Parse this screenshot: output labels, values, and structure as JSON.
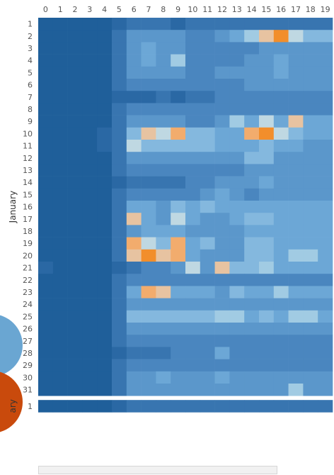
{
  "chart_data": {
    "type": "heatmap",
    "x": [
      0,
      1,
      2,
      3,
      4,
      5,
      6,
      7,
      8,
      9,
      10,
      11,
      12,
      13,
      14,
      15,
      16,
      17,
      18,
      19
    ],
    "row_panels": [
      {
        "label": "January",
        "days": [
          1,
          2,
          3,
          4,
          5,
          6,
          7,
          8,
          9,
          10,
          11,
          12,
          13,
          14,
          15,
          16,
          17,
          18,
          19,
          20,
          21,
          22,
          23,
          24,
          25,
          26,
          27,
          28,
          29,
          30,
          31
        ]
      },
      {
        "label": "ary",
        "days": [
          1
        ]
      }
    ],
    "palette": [
      "#1f5f9a",
      "#2a68a4",
      "#3875b0",
      "#4a86bf",
      "#5b97cb",
      "#6ca7d6",
      "#84b8de",
      "#a1cbe3",
      "#bfd8e2",
      "#e7c3a1",
      "#f2ac6d",
      "#f28e2b"
    ],
    "levels": [
      [
        0,
        0,
        0,
        0,
        0,
        1,
        2,
        2,
        2,
        1,
        2,
        2,
        2,
        2,
        2,
        2,
        2,
        2,
        2,
        2
      ],
      [
        0,
        0,
        0,
        0,
        0,
        2,
        4,
        4,
        4,
        4,
        3,
        3,
        4,
        5,
        7,
        9,
        11,
        8,
        6,
        6
      ],
      [
        0,
        0,
        0,
        0,
        0,
        2,
        4,
        5,
        4,
        4,
        3,
        3,
        3,
        3,
        3,
        4,
        4,
        4,
        4,
        4
      ],
      [
        0,
        0,
        0,
        0,
        0,
        2,
        4,
        5,
        4,
        7,
        3,
        3,
        3,
        3,
        4,
        4,
        5,
        4,
        4,
        4
      ],
      [
        0,
        0,
        0,
        0,
        0,
        2,
        4,
        4,
        4,
        4,
        3,
        3,
        4,
        4,
        4,
        4,
        5,
        4,
        4,
        4
      ],
      [
        0,
        0,
        0,
        0,
        0,
        2,
        3,
        3,
        3,
        3,
        3,
        3,
        3,
        3,
        4,
        4,
        4,
        4,
        4,
        4
      ],
      [
        0,
        0,
        0,
        0,
        0,
        1,
        1,
        1,
        2,
        1,
        2,
        2,
        3,
        3,
        3,
        3,
        3,
        3,
        3,
        3
      ],
      [
        0,
        0,
        0,
        0,
        0,
        2,
        3,
        3,
        3,
        3,
        3,
        3,
        3,
        3,
        3,
        3,
        3,
        3,
        3,
        3
      ],
      [
        0,
        0,
        0,
        0,
        0,
        2,
        4,
        4,
        4,
        4,
        3,
        3,
        4,
        7,
        5,
        8,
        5,
        9,
        5,
        5
      ],
      [
        0,
        0,
        0,
        0,
        1,
        2,
        6,
        9,
        8,
        10,
        6,
        6,
        5,
        5,
        10,
        11,
        8,
        6,
        5,
        5
      ],
      [
        0,
        0,
        0,
        0,
        1,
        2,
        8,
        6,
        6,
        6,
        6,
        6,
        5,
        5,
        5,
        6,
        5,
        5,
        4,
        4
      ],
      [
        0,
        0,
        0,
        0,
        0,
        2,
        4,
        4,
        4,
        4,
        4,
        4,
        4,
        4,
        6,
        6,
        4,
        4,
        4,
        4
      ],
      [
        0,
        0,
        0,
        0,
        0,
        2,
        3,
        3,
        3,
        3,
        3,
        3,
        3,
        3,
        4,
        4,
        4,
        4,
        4,
        4
      ],
      [
        0,
        0,
        0,
        0,
        0,
        1,
        2,
        2,
        2,
        2,
        3,
        3,
        4,
        4,
        4,
        5,
        4,
        4,
        4,
        4
      ],
      [
        0,
        0,
        0,
        0,
        0,
        2,
        3,
        3,
        3,
        3,
        3,
        4,
        5,
        4,
        3,
        4,
        4,
        4,
        4,
        4
      ],
      [
        0,
        0,
        0,
        0,
        0,
        2,
        5,
        5,
        4,
        6,
        5,
        6,
        5,
        5,
        5,
        5,
        5,
        5,
        5,
        5
      ],
      [
        0,
        0,
        0,
        0,
        0,
        2,
        9,
        5,
        4,
        8,
        5,
        4,
        4,
        5,
        6,
        6,
        5,
        5,
        5,
        5
      ],
      [
        0,
        0,
        0,
        0,
        0,
        2,
        4,
        5,
        5,
        5,
        4,
        4,
        4,
        4,
        5,
        5,
        5,
        5,
        5,
        5
      ],
      [
        0,
        0,
        0,
        0,
        0,
        2,
        10,
        8,
        6,
        10,
        5,
        6,
        4,
        4,
        6,
        6,
        5,
        5,
        5,
        5
      ],
      [
        0,
        0,
        0,
        0,
        0,
        2,
        9,
        11,
        9,
        10,
        5,
        4,
        4,
        4,
        6,
        6,
        5,
        7,
        7,
        5
      ],
      [
        1,
        0,
        0,
        0,
        0,
        1,
        2,
        3,
        3,
        4,
        8,
        4,
        9,
        6,
        6,
        7,
        5,
        5,
        5,
        5
      ],
      [
        0,
        0,
        0,
        0,
        0,
        2,
        3,
        3,
        3,
        3,
        3,
        3,
        3,
        3,
        3,
        3,
        3,
        3,
        3,
        3
      ],
      [
        0,
        0,
        0,
        0,
        0,
        2,
        5,
        10,
        9,
        5,
        5,
        5,
        4,
        6,
        5,
        5,
        7,
        5,
        5,
        5
      ],
      [
        0,
        0,
        0,
        0,
        0,
        2,
        4,
        4,
        4,
        4,
        4,
        4,
        4,
        4,
        4,
        4,
        4,
        4,
        4,
        4
      ],
      [
        0,
        0,
        0,
        0,
        0,
        2,
        6,
        6,
        6,
        6,
        6,
        6,
        7,
        7,
        5,
        6,
        5,
        7,
        7,
        5
      ],
      [
        0,
        0,
        0,
        0,
        0,
        2,
        4,
        4,
        4,
        4,
        4,
        4,
        4,
        4,
        4,
        4,
        4,
        4,
        4,
        4
      ],
      [
        0,
        0,
        0,
        0,
        0,
        2,
        3,
        3,
        3,
        3,
        3,
        3,
        3,
        3,
        3,
        3,
        3,
        3,
        3,
        3
      ],
      [
        0,
        0,
        0,
        0,
        0,
        1,
        2,
        2,
        2,
        3,
        3,
        3,
        5,
        3,
        3,
        3,
        3,
        3,
        3,
        3
      ],
      [
        0,
        0,
        0,
        0,
        0,
        2,
        3,
        3,
        3,
        3,
        3,
        3,
        3,
        3,
        3,
        3,
        3,
        3,
        3,
        3
      ],
      [
        0,
        0,
        0,
        0,
        0,
        2,
        4,
        4,
        5,
        4,
        4,
        4,
        5,
        4,
        4,
        4,
        4,
        4,
        4,
        4
      ],
      [
        0,
        0,
        0,
        0,
        0,
        2,
        4,
        4,
        4,
        4,
        4,
        4,
        4,
        4,
        4,
        4,
        4,
        7,
        4,
        4
      ],
      [
        0,
        0,
        0,
        0,
        0,
        1,
        2,
        2,
        2,
        2,
        2,
        2,
        2,
        2,
        2,
        2,
        2,
        2,
        2,
        2
      ]
    ],
    "legend_circles": [
      "#6aa6d2",
      "#c94a0c"
    ]
  }
}
